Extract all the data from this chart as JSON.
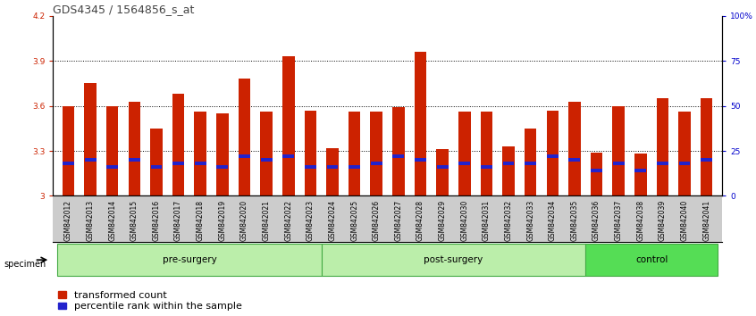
{
  "title": "GDS4345 / 1564856_s_at",
  "samples": [
    "GSM842012",
    "GSM842013",
    "GSM842014",
    "GSM842015",
    "GSM842016",
    "GSM842017",
    "GSM842018",
    "GSM842019",
    "GSM842020",
    "GSM842021",
    "GSM842022",
    "GSM842023",
    "GSM842024",
    "GSM842025",
    "GSM842026",
    "GSM842027",
    "GSM842028",
    "GSM842029",
    "GSM842030",
    "GSM842031",
    "GSM842032",
    "GSM842033",
    "GSM842034",
    "GSM842035",
    "GSM842036",
    "GSM842037",
    "GSM842038",
    "GSM842039",
    "GSM842040",
    "GSM842041"
  ],
  "transformed_count": [
    3.6,
    3.75,
    3.6,
    3.63,
    3.45,
    3.68,
    3.56,
    3.55,
    3.78,
    3.56,
    3.93,
    3.57,
    3.32,
    3.56,
    3.56,
    3.59,
    3.96,
    3.31,
    3.56,
    3.56,
    3.33,
    3.45,
    3.57,
    3.63,
    3.29,
    3.6,
    3.28,
    3.65,
    3.56,
    3.65
  ],
  "percentile_rank": [
    18,
    20,
    16,
    20,
    16,
    18,
    18,
    16,
    22,
    20,
    22,
    16,
    16,
    16,
    18,
    22,
    20,
    16,
    18,
    16,
    18,
    18,
    22,
    20,
    14,
    18,
    14,
    18,
    18,
    20
  ],
  "groups": [
    {
      "label": "pre-surgery",
      "start": 0,
      "end": 12,
      "color": "#BBEEAA"
    },
    {
      "label": "post-surgery",
      "start": 12,
      "end": 24,
      "color": "#BBEEAA"
    },
    {
      "label": "control",
      "start": 24,
      "end": 30,
      "color": "#55DD55"
    }
  ],
  "ymin": 3.0,
  "ymax": 4.2,
  "yticks": [
    3.0,
    3.3,
    3.6,
    3.9,
    4.2
  ],
  "ytick_labels": [
    "3",
    "3.3",
    "3.6",
    "3.9",
    "4.2"
  ],
  "right_yticks": [
    0,
    25,
    50,
    75,
    100
  ],
  "right_ytick_labels": [
    "0",
    "25",
    "50",
    "75",
    "100%"
  ],
  "bar_color": "#CC2200",
  "blue_color": "#2222CC",
  "bar_width": 0.55,
  "grid_color": "#000000",
  "title_fontsize": 9,
  "tick_fontsize": 6.5,
  "legend_fontsize": 8,
  "specimen_label": "specimen",
  "background_color": "#FFFFFF",
  "plot_bg_color": "#FFFFFF",
  "axis_label_color_left": "#CC2200",
  "axis_label_color_right": "#0000CC",
  "xtick_bg_color": "#CCCCCC"
}
